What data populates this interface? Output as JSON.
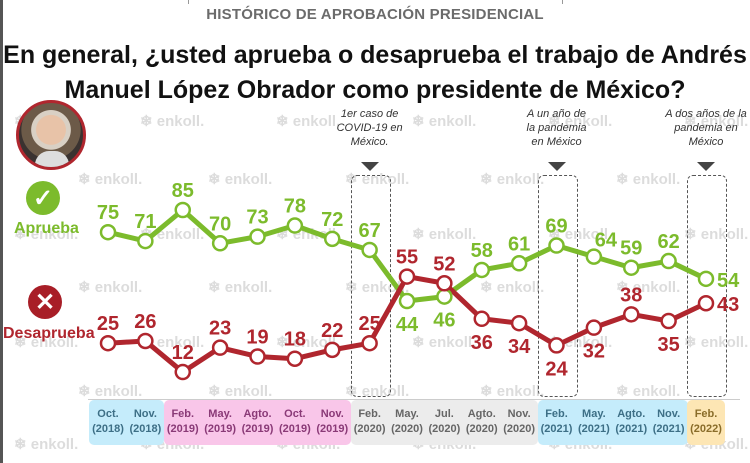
{
  "header": {
    "subtitle": "HISTÓRICO DE APROBACIÓN PRESIDENCIAL",
    "title_line1": "En general, ¿usted aprueba o desaprueba el trabajo de Andrés",
    "title_line2": "Manuel López Obrador como presidente de México?"
  },
  "legend": {
    "approve": {
      "label": "Aprueba",
      "icon": "check-icon",
      "glyph": "✓",
      "color": "#7cbb2c"
    },
    "disapprove": {
      "label": "Desaprueba",
      "icon": "x-icon",
      "glyph": "✕",
      "color": "#b0262e"
    }
  },
  "watermark": "enkoll.",
  "annotations": [
    {
      "text": [
        "1er caso de",
        "COVID-19 en",
        "México."
      ],
      "period_index": 7
    },
    {
      "text": [
        "A un año de",
        "la pandemia",
        "en México"
      ],
      "period_index": 12
    },
    {
      "text": [
        "A dos años de la",
        "pandemia en",
        "México"
      ],
      "period_index": 16
    }
  ],
  "axis_bands": [
    {
      "from": 0,
      "to": 1,
      "color": "#c5ecfb",
      "text_color": "#3d6f86"
    },
    {
      "from": 2,
      "to": 6,
      "color": "#f9c6e9",
      "text_color": "#8a3a77"
    },
    {
      "from": 7,
      "to": 11,
      "color": "#ececec",
      "text_color": "#666666"
    },
    {
      "from": 12,
      "to": 15,
      "color": "#c5ecfb",
      "text_color": "#3d6f86"
    },
    {
      "from": 16,
      "to": 16,
      "color": "#fde6b4",
      "text_color": "#8a6d2a"
    }
  ],
  "chart_data": {
    "type": "line",
    "title": "En general, ¿usted aprueba o desaprueba el trabajo de Andrés Manuel López Obrador como presidente de México?",
    "subtitle": "HISTÓRICO DE APROBACIÓN PRESIDENCIAL",
    "xlabel": "",
    "ylabel": "",
    "grid": false,
    "categories": [
      {
        "month": "Oct.",
        "year": "(2018)"
      },
      {
        "month": "Nov.",
        "year": "(2018)"
      },
      {
        "month": "Feb.",
        "year": "(2019)"
      },
      {
        "month": "May.",
        "year": "(2019)"
      },
      {
        "month": "Agto.",
        "year": "(2019)"
      },
      {
        "month": "Oct.",
        "year": "(2019)"
      },
      {
        "month": "Nov.",
        "year": "(2019)"
      },
      {
        "month": "Feb.",
        "year": "(2020)"
      },
      {
        "month": "May.",
        "year": "(2020)"
      },
      {
        "month": "Jul.",
        "year": "(2020)"
      },
      {
        "month": "Agto.",
        "year": "(2020)"
      },
      {
        "month": "Nov.",
        "year": "(2020)"
      },
      {
        "month": "Feb.",
        "year": "(2021)"
      },
      {
        "month": "May.",
        "year": "(2021)"
      },
      {
        "month": "Agto.",
        "year": "(2021)"
      },
      {
        "month": "Nov.",
        "year": "(2021)"
      },
      {
        "month": "Feb.",
        "year": "(2022)"
      }
    ],
    "series": [
      {
        "name": "Aprueba",
        "color": "#7cbb2c",
        "values": [
          75,
          71,
          85,
          70,
          73,
          78,
          72,
          67,
          44,
          46,
          58,
          61,
          69,
          64,
          59,
          62,
          54
        ],
        "label_pos": [
          "above",
          "above",
          "above",
          "above",
          "above",
          "above",
          "above",
          "above",
          "below",
          "below",
          "above",
          "above",
          "above",
          "above-right",
          "above",
          "above",
          "right"
        ]
      },
      {
        "name": "Desaprueba",
        "color": "#b0262e",
        "values": [
          25,
          26,
          12,
          23,
          19,
          18,
          22,
          25,
          55,
          52,
          36,
          34,
          24,
          32,
          38,
          35,
          43
        ],
        "label_pos": [
          "above",
          "above",
          "above",
          "above",
          "above",
          "above",
          "above",
          "above",
          "above",
          "above",
          "below",
          "below",
          "below",
          "below",
          "above",
          "below",
          "right"
        ]
      }
    ],
    "legend": "left"
  }
}
